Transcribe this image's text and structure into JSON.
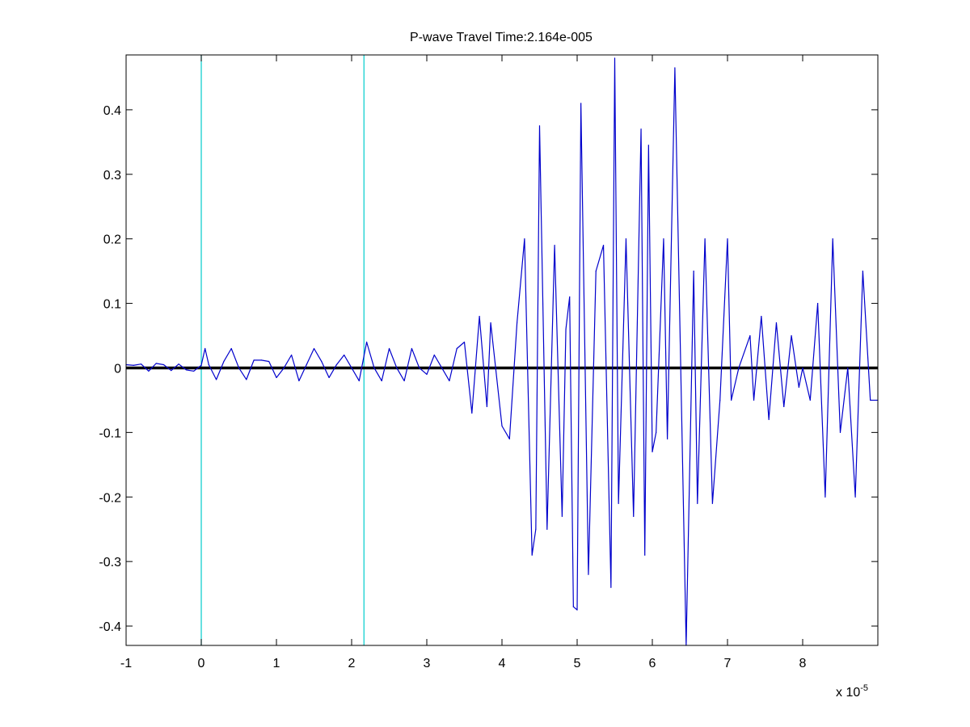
{
  "chart_data": {
    "type": "line",
    "title": "P-wave Travel Time:2.164e-005",
    "xlabel": "",
    "ylabel": "",
    "x_exponent_label": {
      "prefix": "x 10",
      "exponent": "-5"
    },
    "xlim": [
      -1,
      9
    ],
    "ylim": [
      -0.43,
      0.485
    ],
    "x_unit_scale": "1e-5",
    "x_ticks": [
      -1,
      0,
      1,
      2,
      3,
      4,
      5,
      6,
      7,
      8
    ],
    "x_tick_labels": [
      "-1",
      "0",
      "1",
      "2",
      "3",
      "4",
      "5",
      "6",
      "7",
      "8"
    ],
    "y_ticks": [
      -0.4,
      -0.3,
      -0.2,
      -0.1,
      0,
      0.1,
      0.2,
      0.3,
      0.4
    ],
    "y_tick_labels": [
      "-0.4",
      "-0.3",
      "-0.2",
      "-0.1",
      "0",
      "0.1",
      "0.2",
      "0.3",
      "0.4"
    ],
    "grid": false,
    "legend": "none",
    "series": [
      {
        "kind": "waveform",
        "color": "#0000cc",
        "x": [
          -1,
          -0.9,
          -0.8,
          -0.7,
          -0.6,
          -0.5,
          -0.4,
          -0.3,
          -0.2,
          -0.1,
          0,
          0.05,
          0.1,
          0.2,
          0.3,
          0.4,
          0.5,
          0.6,
          0.7,
          0.8,
          0.9,
          1.0,
          1.1,
          1.2,
          1.3,
          1.4,
          1.5,
          1.6,
          1.7,
          1.8,
          1.9,
          2.0,
          2.1,
          2.2,
          2.3,
          2.4,
          2.5,
          2.6,
          2.7,
          2.8,
          2.9,
          3.0,
          3.1,
          3.2,
          3.3,
          3.4,
          3.5,
          3.6,
          3.7,
          3.8,
          3.85,
          4.0,
          4.1,
          4.2,
          4.3,
          4.4,
          4.45,
          4.5,
          4.6,
          4.7,
          4.8,
          4.85,
          4.9,
          4.95,
          5.0,
          5.05,
          5.15,
          5.25,
          5.35,
          5.45,
          5.5,
          5.55,
          5.65,
          5.75,
          5.85,
          5.9,
          5.95,
          6.0,
          6.05,
          6.15,
          6.2,
          6.3,
          6.45,
          6.55,
          6.6,
          6.7,
          6.8,
          6.9,
          7.0,
          7.05,
          7.15,
          7.3,
          7.35,
          7.45,
          7.55,
          7.65,
          7.75,
          7.85,
          7.95,
          8.0,
          8.1,
          8.2,
          8.3,
          8.4,
          8.5,
          8.6,
          8.7,
          8.8,
          8.9,
          9.0
        ],
        "y": [
          0.005,
          0.004,
          0.006,
          -0.005,
          0.007,
          0.005,
          -0.004,
          0.006,
          -0.003,
          -0.005,
          0.004,
          0.03,
          0.005,
          -0.018,
          0.01,
          0.03,
          0.0,
          -0.018,
          0.012,
          0.012,
          0.01,
          -0.015,
          0.0,
          0.02,
          -0.02,
          0.005,
          0.03,
          0.01,
          -0.015,
          0.005,
          0.02,
          0.0,
          -0.02,
          0.04,
          0.0,
          -0.02,
          0.03,
          0.0,
          -0.02,
          0.03,
          0.0,
          -0.01,
          0.02,
          0.0,
          -0.02,
          0.03,
          0.04,
          -0.07,
          0.08,
          -0.06,
          0.07,
          -0.09,
          -0.11,
          0.07,
          0.2,
          -0.29,
          -0.25,
          0.375,
          -0.25,
          0.19,
          -0.23,
          0.06,
          0.11,
          -0.37,
          -0.375,
          0.41,
          -0.32,
          0.15,
          0.19,
          -0.34,
          0.48,
          -0.21,
          0.2,
          -0.23,
          0.37,
          -0.29,
          0.345,
          -0.13,
          -0.1,
          0.2,
          -0.11,
          0.465,
          -0.43,
          0.15,
          -0.21,
          0.2,
          -0.21,
          -0.05,
          0.2,
          -0.05,
          0.0,
          0.05,
          -0.05,
          0.08,
          -0.08,
          0.07,
          -0.06,
          0.05,
          -0.03,
          0.0,
          -0.05,
          0.1,
          -0.2,
          0.2,
          -0.1,
          0.0,
          -0.2,
          0.15,
          -0.05,
          -0.05
        ]
      },
      {
        "kind": "baseline",
        "color": "#000000",
        "y": 0
      }
    ],
    "vertical_markers": [
      {
        "x": 0,
        "color": "#00cccc"
      },
      {
        "x": 2.164,
        "color": "#00cccc"
      }
    ]
  }
}
